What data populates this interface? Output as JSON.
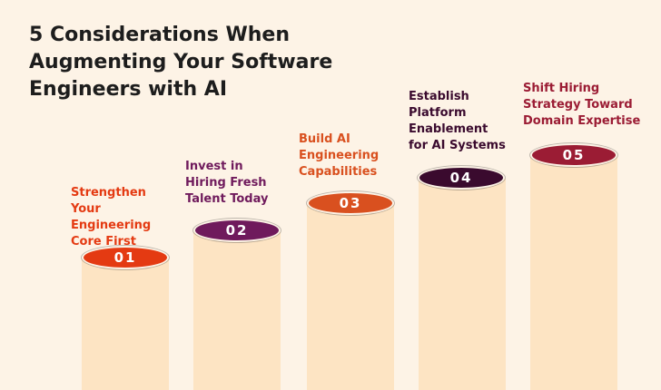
{
  "title": "5 Considerations When Augmenting Your Software Engineers with AI",
  "steps": [
    {
      "number": "01",
      "label": "Strengthen Your Engineering Core First",
      "color": "#e43a12"
    },
    {
      "number": "02",
      "label": "Invest in Hiring Fresh Talent Today",
      "color": "#6f1a5c"
    },
    {
      "number": "03",
      "label": "Build AI Engineering Capabilities",
      "color": "#d9501f"
    },
    {
      "number": "04",
      "label": "Establish Platform Enablement for AI Systems",
      "color": "#3a0a2e"
    },
    {
      "number": "05",
      "label": "Shift Hiring Strategy Toward Domain Expertise",
      "color": "#9b1c34"
    }
  ]
}
